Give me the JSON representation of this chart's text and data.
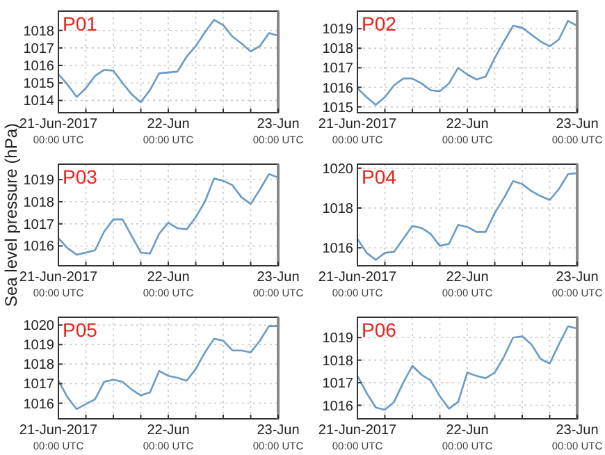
{
  "chart_data": [
    {
      "type": "line",
      "title": "P01",
      "grid": true,
      "x": [
        "2017-06-21T00:00",
        "2017-06-21T02:00",
        "2017-06-21T04:00",
        "2017-06-21T06:00",
        "2017-06-21T08:00",
        "2017-06-21T10:00",
        "2017-06-21T12:00",
        "2017-06-21T14:00",
        "2017-06-21T16:00",
        "2017-06-21T18:00",
        "2017-06-21T20:00",
        "2017-06-21T22:00",
        "2017-06-22T00:00",
        "2017-06-22T02:00",
        "2017-06-22T04:00",
        "2017-06-22T06:00",
        "2017-06-22T08:00",
        "2017-06-22T10:00",
        "2017-06-22T12:00",
        "2017-06-22T14:00",
        "2017-06-22T16:00",
        "2017-06-22T18:00",
        "2017-06-22T20:00",
        "2017-06-22T22:00",
        "2017-06-23T00:00"
      ],
      "series": [
        {
          "color": "#6a9bc6",
          "values": [
            1015.5,
            1014.9,
            1014.2,
            1014.7,
            1015.4,
            1015.75,
            1015.7,
            1015.0,
            1014.35,
            1013.9,
            1014.6,
            1015.55,
            1015.6,
            1015.65,
            1016.5,
            1017.1,
            1017.9,
            1018.6,
            1018.3,
            1017.65,
            1017.25,
            1016.8,
            1017.1,
            1017.85,
            1017.7
          ]
        }
      ],
      "xlim": [
        "2017-06-21T00:00",
        "2017-06-23T00:00"
      ],
      "ylim": [
        1013.3,
        1019.1
      ],
      "yticks": [
        1014,
        1015,
        1016,
        1017,
        1018
      ],
      "xticks": [
        {
          "value": "2017-06-21T00:00",
          "label": "21-Jun-2017\n00:00 UTC"
        },
        {
          "value": "2017-06-21T06:00",
          "label": null
        },
        {
          "value": "2017-06-21T12:00",
          "label": null
        },
        {
          "value": "2017-06-21T18:00",
          "label": null
        },
        {
          "value": "2017-06-22T00:00",
          "label": "22-Jun\n00:00 UTC"
        },
        {
          "value": "2017-06-22T06:00",
          "label": null
        },
        {
          "value": "2017-06-22T12:00",
          "label": null
        },
        {
          "value": "2017-06-22T18:00",
          "label": null
        },
        {
          "value": "2017-06-23T00:00",
          "label": "23-Jun\n00:00 UTC"
        }
      ]
    },
    {
      "type": "line",
      "title": "P02",
      "grid": true,
      "x": [
        "2017-06-21T00:00",
        "2017-06-21T02:00",
        "2017-06-21T04:00",
        "2017-06-21T06:00",
        "2017-06-21T08:00",
        "2017-06-21T10:00",
        "2017-06-21T12:00",
        "2017-06-21T14:00",
        "2017-06-21T16:00",
        "2017-06-21T18:00",
        "2017-06-21T20:00",
        "2017-06-21T22:00",
        "2017-06-22T00:00",
        "2017-06-22T02:00",
        "2017-06-22T04:00",
        "2017-06-22T06:00",
        "2017-06-22T08:00",
        "2017-06-22T10:00",
        "2017-06-22T12:00",
        "2017-06-22T14:00",
        "2017-06-22T16:00",
        "2017-06-22T18:00",
        "2017-06-22T20:00",
        "2017-06-22T22:00",
        "2017-06-23T00:00"
      ],
      "series": [
        {
          "color": "#6a9bc6",
          "values": [
            1015.95,
            1015.5,
            1015.1,
            1015.5,
            1016.1,
            1016.45,
            1016.45,
            1016.2,
            1015.85,
            1015.8,
            1016.2,
            1017.0,
            1016.65,
            1016.4,
            1016.55,
            1017.5,
            1018.35,
            1019.15,
            1019.05,
            1018.7,
            1018.35,
            1018.1,
            1018.45,
            1019.4,
            1019.15
          ]
        }
      ],
      "xlim": [
        "2017-06-21T00:00",
        "2017-06-23T00:00"
      ],
      "ylim": [
        1014.7,
        1019.9
      ],
      "yticks": [
        1015,
        1016,
        1017,
        1018,
        1019
      ],
      "xticks": [
        {
          "value": "2017-06-21T00:00",
          "label": "21-Jun-2017\n00:00 UTC"
        },
        {
          "value": "2017-06-21T06:00",
          "label": null
        },
        {
          "value": "2017-06-21T12:00",
          "label": null
        },
        {
          "value": "2017-06-21T18:00",
          "label": null
        },
        {
          "value": "2017-06-22T00:00",
          "label": "22-Jun\n00:00 UTC"
        },
        {
          "value": "2017-06-22T06:00",
          "label": null
        },
        {
          "value": "2017-06-22T12:00",
          "label": null
        },
        {
          "value": "2017-06-22T18:00",
          "label": null
        },
        {
          "value": "2017-06-23T00:00",
          "label": "23-Jun\n00:00 UTC"
        }
      ]
    },
    {
      "type": "line",
      "title": "P03",
      "ylabel": "Sea level pressure (hPa)",
      "grid": true,
      "x": [
        "2017-06-21T00:00",
        "2017-06-21T02:00",
        "2017-06-21T04:00",
        "2017-06-21T06:00",
        "2017-06-21T08:00",
        "2017-06-21T10:00",
        "2017-06-21T12:00",
        "2017-06-21T14:00",
        "2017-06-21T16:00",
        "2017-06-21T18:00",
        "2017-06-21T20:00",
        "2017-06-21T22:00",
        "2017-06-22T00:00",
        "2017-06-22T02:00",
        "2017-06-22T04:00",
        "2017-06-22T06:00",
        "2017-06-22T08:00",
        "2017-06-22T10:00",
        "2017-06-22T12:00",
        "2017-06-22T14:00",
        "2017-06-22T16:00",
        "2017-06-22T18:00",
        "2017-06-22T20:00",
        "2017-06-22T22:00",
        "2017-06-23T00:00"
      ],
      "series": [
        {
          "color": "#6a9bc6",
          "values": [
            1016.35,
            1015.9,
            1015.6,
            1015.7,
            1015.8,
            1016.65,
            1017.2,
            1017.2,
            1016.45,
            1015.7,
            1015.65,
            1016.55,
            1017.05,
            1016.8,
            1016.75,
            1017.3,
            1018.0,
            1019.05,
            1018.95,
            1018.75,
            1018.2,
            1017.9,
            1018.55,
            1019.25,
            1019.1
          ]
        }
      ],
      "xlim": [
        "2017-06-21T00:00",
        "2017-06-23T00:00"
      ],
      "ylim": [
        1015.1,
        1019.7
      ],
      "yticks": [
        1016,
        1017,
        1018,
        1019
      ],
      "xticks": [
        {
          "value": "2017-06-21T00:00",
          "label": "21-Jun-2017\n00:00 UTC"
        },
        {
          "value": "2017-06-21T06:00",
          "label": null
        },
        {
          "value": "2017-06-21T12:00",
          "label": null
        },
        {
          "value": "2017-06-21T18:00",
          "label": null
        },
        {
          "value": "2017-06-22T00:00",
          "label": "22-Jun\n00:00 UTC"
        },
        {
          "value": "2017-06-22T06:00",
          "label": null
        },
        {
          "value": "2017-06-22T12:00",
          "label": null
        },
        {
          "value": "2017-06-22T18:00",
          "label": null
        },
        {
          "value": "2017-06-23T00:00",
          "label": "23-Jun\n00:00 UTC"
        }
      ]
    },
    {
      "type": "line",
      "title": "P04",
      "grid": true,
      "x": [
        "2017-06-21T00:00",
        "2017-06-21T02:00",
        "2017-06-21T04:00",
        "2017-06-21T06:00",
        "2017-06-21T08:00",
        "2017-06-21T10:00",
        "2017-06-21T12:00",
        "2017-06-21T14:00",
        "2017-06-21T16:00",
        "2017-06-21T18:00",
        "2017-06-21T20:00",
        "2017-06-21T22:00",
        "2017-06-22T00:00",
        "2017-06-22T02:00",
        "2017-06-22T04:00",
        "2017-06-22T06:00",
        "2017-06-22T08:00",
        "2017-06-22T10:00",
        "2017-06-22T12:00",
        "2017-06-22T14:00",
        "2017-06-22T16:00",
        "2017-06-22T18:00",
        "2017-06-22T20:00",
        "2017-06-22T22:00",
        "2017-06-23T00:00"
      ],
      "series": [
        {
          "color": "#6a9bc6",
          "values": [
            1016.45,
            1015.75,
            1015.4,
            1015.75,
            1015.8,
            1016.45,
            1017.1,
            1017.0,
            1016.7,
            1016.1,
            1016.2,
            1017.15,
            1017.05,
            1016.8,
            1016.8,
            1017.75,
            1018.5,
            1019.35,
            1019.2,
            1018.85,
            1018.6,
            1018.4,
            1018.95,
            1019.7,
            1019.75
          ]
        }
      ],
      "xlim": [
        "2017-06-21T00:00",
        "2017-06-23T00:00"
      ],
      "ylim": [
        1015.1,
        1020.2
      ],
      "yticks": [
        1016,
        1018,
        1020
      ],
      "xticks": [
        {
          "value": "2017-06-21T00:00",
          "label": "21-Jun-2017\n00:00 UTC"
        },
        {
          "value": "2017-06-21T06:00",
          "label": null
        },
        {
          "value": "2017-06-21T12:00",
          "label": null
        },
        {
          "value": "2017-06-21T18:00",
          "label": null
        },
        {
          "value": "2017-06-22T00:00",
          "label": "22-Jun\n00:00 UTC"
        },
        {
          "value": "2017-06-22T06:00",
          "label": null
        },
        {
          "value": "2017-06-22T12:00",
          "label": null
        },
        {
          "value": "2017-06-22T18:00",
          "label": null
        },
        {
          "value": "2017-06-23T00:00",
          "label": "23-Jun\n00:00 UTC"
        }
      ]
    },
    {
      "type": "line",
      "title": "P05",
      "grid": true,
      "x": [
        "2017-06-21T00:00",
        "2017-06-21T02:00",
        "2017-06-21T04:00",
        "2017-06-21T06:00",
        "2017-06-21T08:00",
        "2017-06-21T10:00",
        "2017-06-21T12:00",
        "2017-06-21T14:00",
        "2017-06-21T16:00",
        "2017-06-21T18:00",
        "2017-06-21T20:00",
        "2017-06-21T22:00",
        "2017-06-22T00:00",
        "2017-06-22T02:00",
        "2017-06-22T04:00",
        "2017-06-22T06:00",
        "2017-06-22T08:00",
        "2017-06-22T10:00",
        "2017-06-22T12:00",
        "2017-06-22T14:00",
        "2017-06-22T16:00",
        "2017-06-22T18:00",
        "2017-06-22T20:00",
        "2017-06-22T22:00",
        "2017-06-23T00:00"
      ],
      "series": [
        {
          "color": "#6a9bc6",
          "values": [
            1017.15,
            1016.3,
            1015.7,
            1015.95,
            1016.2,
            1017.1,
            1017.2,
            1017.1,
            1016.7,
            1016.4,
            1016.55,
            1017.65,
            1017.4,
            1017.3,
            1017.15,
            1017.75,
            1018.6,
            1019.3,
            1019.2,
            1018.7,
            1018.7,
            1018.6,
            1019.2,
            1019.95,
            1019.95
          ]
        }
      ],
      "xlim": [
        "2017-06-21T00:00",
        "2017-06-23T00:00"
      ],
      "ylim": [
        1015.2,
        1020.4
      ],
      "yticks": [
        1016,
        1017,
        1018,
        1019,
        1020
      ],
      "xticks": [
        {
          "value": "2017-06-21T00:00",
          "label": "21-Jun-2017\n00:00 UTC"
        },
        {
          "value": "2017-06-21T06:00",
          "label": null
        },
        {
          "value": "2017-06-21T12:00",
          "label": null
        },
        {
          "value": "2017-06-21T18:00",
          "label": null
        },
        {
          "value": "2017-06-22T00:00",
          "label": "22-Jun\n00:00 UTC"
        },
        {
          "value": "2017-06-22T06:00",
          "label": null
        },
        {
          "value": "2017-06-22T12:00",
          "label": null
        },
        {
          "value": "2017-06-22T18:00",
          "label": null
        },
        {
          "value": "2017-06-23T00:00",
          "label": "23-Jun\n00:00 UTC"
        }
      ]
    },
    {
      "type": "line",
      "title": "P06",
      "grid": true,
      "x": [
        "2017-06-21T00:00",
        "2017-06-21T02:00",
        "2017-06-21T04:00",
        "2017-06-21T06:00",
        "2017-06-21T08:00",
        "2017-06-21T10:00",
        "2017-06-21T12:00",
        "2017-06-21T14:00",
        "2017-06-21T16:00",
        "2017-06-21T18:00",
        "2017-06-21T20:00",
        "2017-06-21T22:00",
        "2017-06-22T00:00",
        "2017-06-22T02:00",
        "2017-06-22T04:00",
        "2017-06-22T06:00",
        "2017-06-22T08:00",
        "2017-06-22T10:00",
        "2017-06-22T12:00",
        "2017-06-22T14:00",
        "2017-06-22T16:00",
        "2017-06-22T18:00",
        "2017-06-22T20:00",
        "2017-06-22T22:00",
        "2017-06-23T00:00"
      ],
      "series": [
        {
          "color": "#6a9bc6",
          "values": [
            1017.3,
            1016.55,
            1015.9,
            1015.8,
            1016.15,
            1017.0,
            1017.75,
            1017.35,
            1017.1,
            1016.4,
            1015.85,
            1016.15,
            1017.45,
            1017.3,
            1017.2,
            1017.45,
            1018.15,
            1019.0,
            1019.05,
            1018.7,
            1018.05,
            1017.85,
            1018.7,
            1019.5,
            1019.4
          ]
        }
      ],
      "xlim": [
        "2017-06-21T00:00",
        "2017-06-23T00:00"
      ],
      "ylim": [
        1015.4,
        1019.9
      ],
      "yticks": [
        1016,
        1017,
        1018,
        1019
      ],
      "xticks": [
        {
          "value": "2017-06-21T00:00",
          "label": "21-Jun-2017\n00:00 UTC"
        },
        {
          "value": "2017-06-21T06:00",
          "label": null
        },
        {
          "value": "2017-06-21T12:00",
          "label": null
        },
        {
          "value": "2017-06-21T18:00",
          "label": null
        },
        {
          "value": "2017-06-22T00:00",
          "label": "22-Jun\n00:00 UTC"
        },
        {
          "value": "2017-06-22T06:00",
          "label": null
        },
        {
          "value": "2017-06-22T12:00",
          "label": null
        },
        {
          "value": "2017-06-22T18:00",
          "label": null
        },
        {
          "value": "2017-06-23T00:00",
          "label": "23-Jun\n00:00 UTC"
        }
      ]
    }
  ]
}
